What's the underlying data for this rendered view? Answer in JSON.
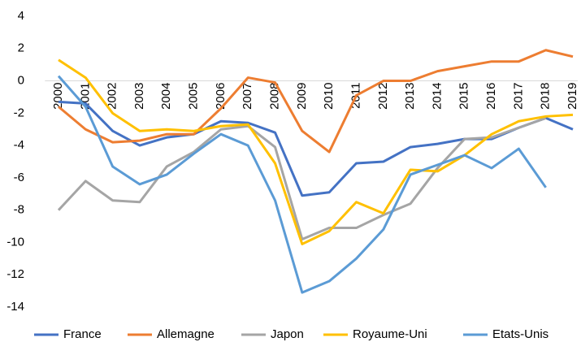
{
  "chart_data": {
    "type": "line",
    "categories": [
      "2000",
      "2001",
      "2002",
      "2003",
      "2004",
      "2005",
      "2006",
      "2007",
      "2008",
      "2009",
      "2010",
      "2011",
      "2012",
      "2013",
      "2014",
      "2015",
      "2016",
      "2017",
      "2018",
      "2019"
    ],
    "series": [
      {
        "name": "France",
        "color": "#4472c4",
        "values": [
          -1.3,
          -1.4,
          -3.1,
          -4.0,
          -3.5,
          -3.3,
          -2.5,
          -2.6,
          -3.2,
          -7.1,
          -6.9,
          -5.1,
          -5.0,
          -4.1,
          -3.9,
          -3.6,
          -3.6,
          -2.9,
          -2.3,
          -3.0
        ]
      },
      {
        "name": "Allemagne",
        "color": "#ed7d31",
        "values": [
          -1.6,
          -3.0,
          -3.8,
          -3.7,
          -3.3,
          -3.3,
          -1.7,
          0.2,
          -0.1,
          -3.1,
          -4.4,
          -0.9,
          0.0,
          0.0,
          0.6,
          0.9,
          1.2,
          1.2,
          1.9,
          1.5
        ]
      },
      {
        "name": "Japon",
        "color": "#a5a5a5",
        "values": [
          -8.0,
          -6.2,
          -7.4,
          -7.5,
          -5.3,
          -4.4,
          -3.0,
          -2.8,
          -4.1,
          -9.8,
          -9.1,
          -9.1,
          -8.3,
          -7.6,
          -5.4,
          -3.6,
          -3.5,
          -2.9,
          -2.3,
          null
        ]
      },
      {
        "name": "Royaume-Uni",
        "color": "#ffc000",
        "values": [
          1.3,
          0.2,
          -2.0,
          -3.1,
          -3.0,
          -3.1,
          -2.8,
          -2.7,
          -5.1,
          -10.1,
          -9.3,
          -7.5,
          -8.2,
          -5.5,
          -5.6,
          -4.6,
          -3.3,
          -2.5,
          -2.2,
          -2.1
        ]
      },
      {
        "name": "Etats-Unis",
        "color": "#5b9bd5",
        "values": [
          0.3,
          -1.6,
          -5.3,
          -6.4,
          -5.8,
          -4.5,
          -3.3,
          -4.0,
          -7.4,
          -13.1,
          -12.4,
          -11.0,
          -9.2,
          -5.8,
          -5.2,
          -4.6,
          -5.4,
          -4.2,
          -6.6,
          null
        ]
      }
    ],
    "ylim": [
      -14,
      4
    ],
    "yticks": [
      -14,
      -12,
      -10,
      -8,
      -6,
      -4,
      -2,
      0,
      2,
      4
    ],
    "grid": false,
    "legend": "bottom"
  }
}
